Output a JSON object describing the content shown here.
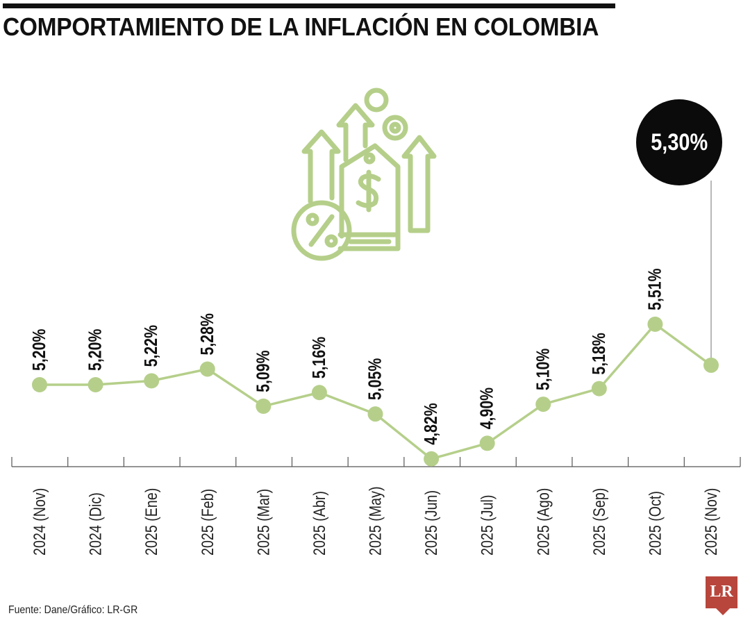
{
  "header": {
    "title": "COMPORTAMIENTO DE LA INFLACIÓN EN COLOMBIA"
  },
  "footer": {
    "source": "Fuente: Dane/Gráfico: LR-GR",
    "logo_text": "LR"
  },
  "highlight": {
    "label": "5,30%"
  },
  "colors": {
    "line": "#b5cf8a",
    "marker": "#b5cf8a",
    "icon": "#b5cf8a",
    "bubble": "#0b0b0b",
    "logo": "#b8463c"
  },
  "icon": {
    "name": "inflation-price-tag-arrows-icon"
  },
  "chart_data": {
    "type": "line",
    "title": "COMPORTAMIENTO DE LA INFLACIÓN EN COLOMBIA",
    "xlabel": "",
    "ylabel": "",
    "categories": [
      "2024 (Nov)",
      "2024 (Dic)",
      "2025 (Ene)",
      "2025 (Feb)",
      "2025 (Mar)",
      "2025 (Abr)",
      "2025 (May)",
      "2025 (Jun)",
      "2025 (Jul)",
      "2025 (Ago)",
      "2025 (Sep)",
      "2025 (Oct)",
      "2025 (Nov)"
    ],
    "values": [
      5.2,
      5.2,
      5.22,
      5.28,
      5.09,
      5.16,
      5.05,
      4.82,
      4.9,
      5.1,
      5.18,
      5.51,
      5.3
    ],
    "data_labels": [
      "5,20%",
      "5,20%",
      "5,22%",
      "5,28%",
      "5,09%",
      "5,16%",
      "5,05%",
      "4,82%",
      "4,90%",
      "5,10%",
      "5,18%",
      "5,51%",
      "5,30%"
    ],
    "ylim": [
      4.8,
      5.55
    ],
    "grid": false,
    "legend": "none"
  }
}
